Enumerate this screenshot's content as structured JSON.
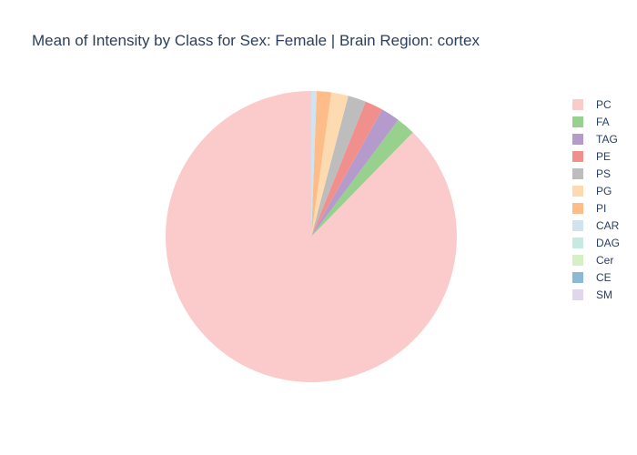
{
  "chart_data": {
    "type": "pie",
    "title": "Mean of Intensity by Class for Sex: Female | Brain Region: cortex",
    "direction": "counterclockwise",
    "start_angle": "top",
    "legend_position": "right",
    "slices": [
      {
        "label": "PC",
        "value": 87.7,
        "color": "#FBCBCB"
      },
      {
        "label": "FA",
        "value": 2.1,
        "color": "#98D08E"
      },
      {
        "label": "TAG",
        "value": 2.1,
        "color": "#B49BCB"
      },
      {
        "label": "PE",
        "value": 2.0,
        "color": "#F18F8C"
      },
      {
        "label": "PS",
        "value": 2.0,
        "color": "#BDBDBD"
      },
      {
        "label": "PG",
        "value": 1.9,
        "color": "#FDDAB0"
      },
      {
        "label": "PI",
        "value": 1.6,
        "color": "#FEBD88"
      },
      {
        "label": "CAR",
        "value": 0.6,
        "color": "#D0E3EF"
      },
      {
        "label": "DAG",
        "value": 0.0,
        "color": "#C7E9E1"
      },
      {
        "label": "Cer",
        "value": 0.0,
        "color": "#D6EFC5"
      },
      {
        "label": "CE",
        "value": 0.0,
        "color": "#8DB8D6"
      },
      {
        "label": "SM",
        "value": 0.0,
        "color": "#E2D6EA"
      }
    ]
  }
}
